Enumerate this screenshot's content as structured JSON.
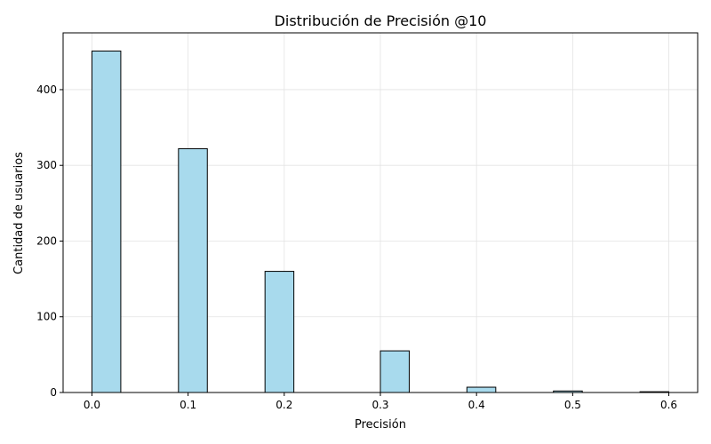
{
  "chart_data": {
    "type": "bar",
    "title": "Distribución de Precisión @10",
    "xlabel": "Precisión",
    "ylabel": "Cantidad de usuarios",
    "bins": [
      {
        "start": 0.0,
        "end": 0.03,
        "count": 451
      },
      {
        "start": 0.09,
        "end": 0.12,
        "count": 322
      },
      {
        "start": 0.18,
        "end": 0.21,
        "count": 160
      },
      {
        "start": 0.3,
        "end": 0.33,
        "count": 55
      },
      {
        "start": 0.39,
        "end": 0.42,
        "count": 7
      },
      {
        "start": 0.48,
        "end": 0.51,
        "count": 2
      },
      {
        "start": 0.57,
        "end": 0.6,
        "count": 1
      }
    ],
    "xlim": [
      -0.03,
      0.63
    ],
    "ylim": [
      0,
      475
    ],
    "xticks": [
      0.0,
      0.1,
      0.2,
      0.3,
      0.4,
      0.5,
      0.6
    ],
    "xtick_labels": [
      "0.0",
      "0.1",
      "0.2",
      "0.3",
      "0.4",
      "0.5",
      "0.6"
    ],
    "yticks": [
      0,
      100,
      200,
      300,
      400
    ],
    "ytick_labels": [
      "0",
      "100",
      "200",
      "300",
      "400"
    ],
    "grid": true,
    "bar_color": "#a8daed",
    "edge_color": "#000000"
  }
}
